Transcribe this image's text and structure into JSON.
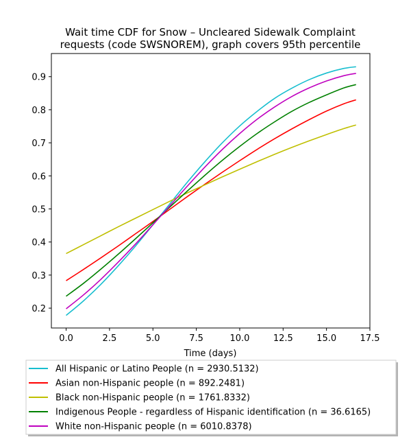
{
  "chart_data": {
    "type": "line",
    "title_lines": [
      "Wait time CDF for Snow – Uncleared Sidewalk Complaint",
      "requests (code SWSNOREM), graph covers 95th percentile"
    ],
    "xlabel": "Time (days)",
    "ylabel": "",
    "xlim": [
      -0.85,
      17.5
    ],
    "ylim": [
      0.14,
      0.97
    ],
    "xticks": [
      0.0,
      2.5,
      5.0,
      7.5,
      10.0,
      12.5,
      15.0,
      17.5
    ],
    "yticks": [
      0.2,
      0.3,
      0.4,
      0.5,
      0.6,
      0.7,
      0.8,
      0.9
    ],
    "grid": false,
    "legend_position": "bottom",
    "x": [
      0,
      1,
      2,
      3,
      4,
      5,
      6,
      7,
      8,
      9,
      10,
      11,
      12,
      13,
      14,
      15,
      16,
      16.7
    ],
    "series": [
      {
        "name": "All Hispanic or Latino People (n = 2930.5132)",
        "color": "#17becf",
        "values": [
          0.178,
          0.222,
          0.272,
          0.328,
          0.388,
          0.452,
          0.517,
          0.582,
          0.643,
          0.7,
          0.751,
          0.795,
          0.834,
          0.865,
          0.891,
          0.911,
          0.925,
          0.93
        ]
      },
      {
        "name": "Asian non-Hispanic people (n = 892.2481)",
        "color": "#ff0000",
        "values": [
          0.283,
          0.317,
          0.352,
          0.388,
          0.425,
          0.462,
          0.5,
          0.538,
          0.575,
          0.611,
          0.646,
          0.68,
          0.712,
          0.742,
          0.77,
          0.796,
          0.818,
          0.83
        ]
      },
      {
        "name": "Black non-Hispanic people (n = 1761.8332)",
        "color": "#bfbf00",
        "values": [
          0.365,
          0.392,
          0.419,
          0.446,
          0.472,
          0.498,
          0.524,
          0.549,
          0.573,
          0.597,
          0.62,
          0.643,
          0.665,
          0.686,
          0.706,
          0.725,
          0.743,
          0.754
        ]
      },
      {
        "name": "Indigenous People - regardless of Hispanic identification (n = 36.6165)",
        "color": "#008000",
        "values": [
          0.236,
          0.275,
          0.318,
          0.363,
          0.41,
          0.458,
          0.507,
          0.555,
          0.602,
          0.647,
          0.689,
          0.728,
          0.763,
          0.795,
          0.822,
          0.845,
          0.866,
          0.876
        ]
      },
      {
        "name": "White non-Hispanic people (n = 6010.8378)",
        "color": "#bf00bf",
        "values": [
          0.198,
          0.24,
          0.287,
          0.339,
          0.394,
          0.452,
          0.511,
          0.57,
          0.627,
          0.68,
          0.728,
          0.771,
          0.808,
          0.84,
          0.866,
          0.887,
          0.903,
          0.91
        ]
      }
    ]
  }
}
